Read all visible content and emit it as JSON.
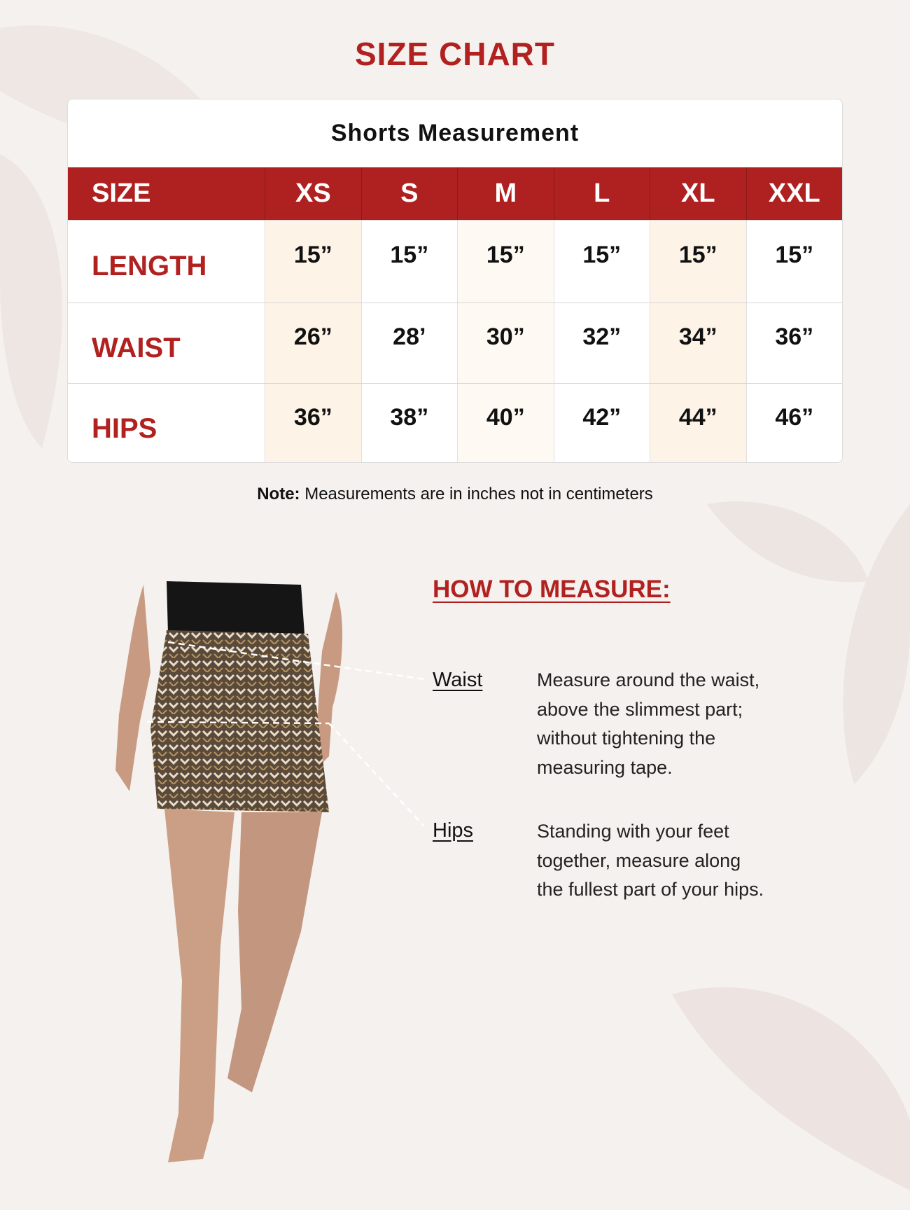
{
  "title": "SIZE CHART",
  "table": {
    "title": "Shorts Measurement",
    "header": [
      "SIZE",
      "XS",
      "S",
      "M",
      "L",
      "XL",
      "XXL"
    ],
    "rows": [
      {
        "label": "LENGTH",
        "values": [
          "15”",
          "15”",
          "15”",
          "15”",
          "15”",
          "15”"
        ]
      },
      {
        "label": "WAIST",
        "values": [
          "26”",
          "28’",
          "30”",
          "32”",
          "34”",
          "36”"
        ]
      },
      {
        "label": "HIPS",
        "values": [
          "36”",
          "38”",
          "40”",
          "42”",
          "44”",
          "46”"
        ]
      }
    ]
  },
  "note": {
    "prefix": "Note:",
    "text": " Measurements are in inches not in centimeters"
  },
  "how_to": {
    "heading": "HOW TO MEASURE:",
    "items": [
      {
        "label": "Waist",
        "lines": [
          "Measure around the waist,",
          "above the slimmest part;",
          "without tightening the",
          "measuring tape."
        ]
      },
      {
        "label": "Hips",
        "lines": [
          "Standing with your feet",
          "together, measure along",
          "the  fullest part of your hips."
        ]
      }
    ]
  },
  "colors": {
    "accent": "#ae2120",
    "background": "#f5f1ee",
    "highlight_column": "#fdf3e6"
  }
}
